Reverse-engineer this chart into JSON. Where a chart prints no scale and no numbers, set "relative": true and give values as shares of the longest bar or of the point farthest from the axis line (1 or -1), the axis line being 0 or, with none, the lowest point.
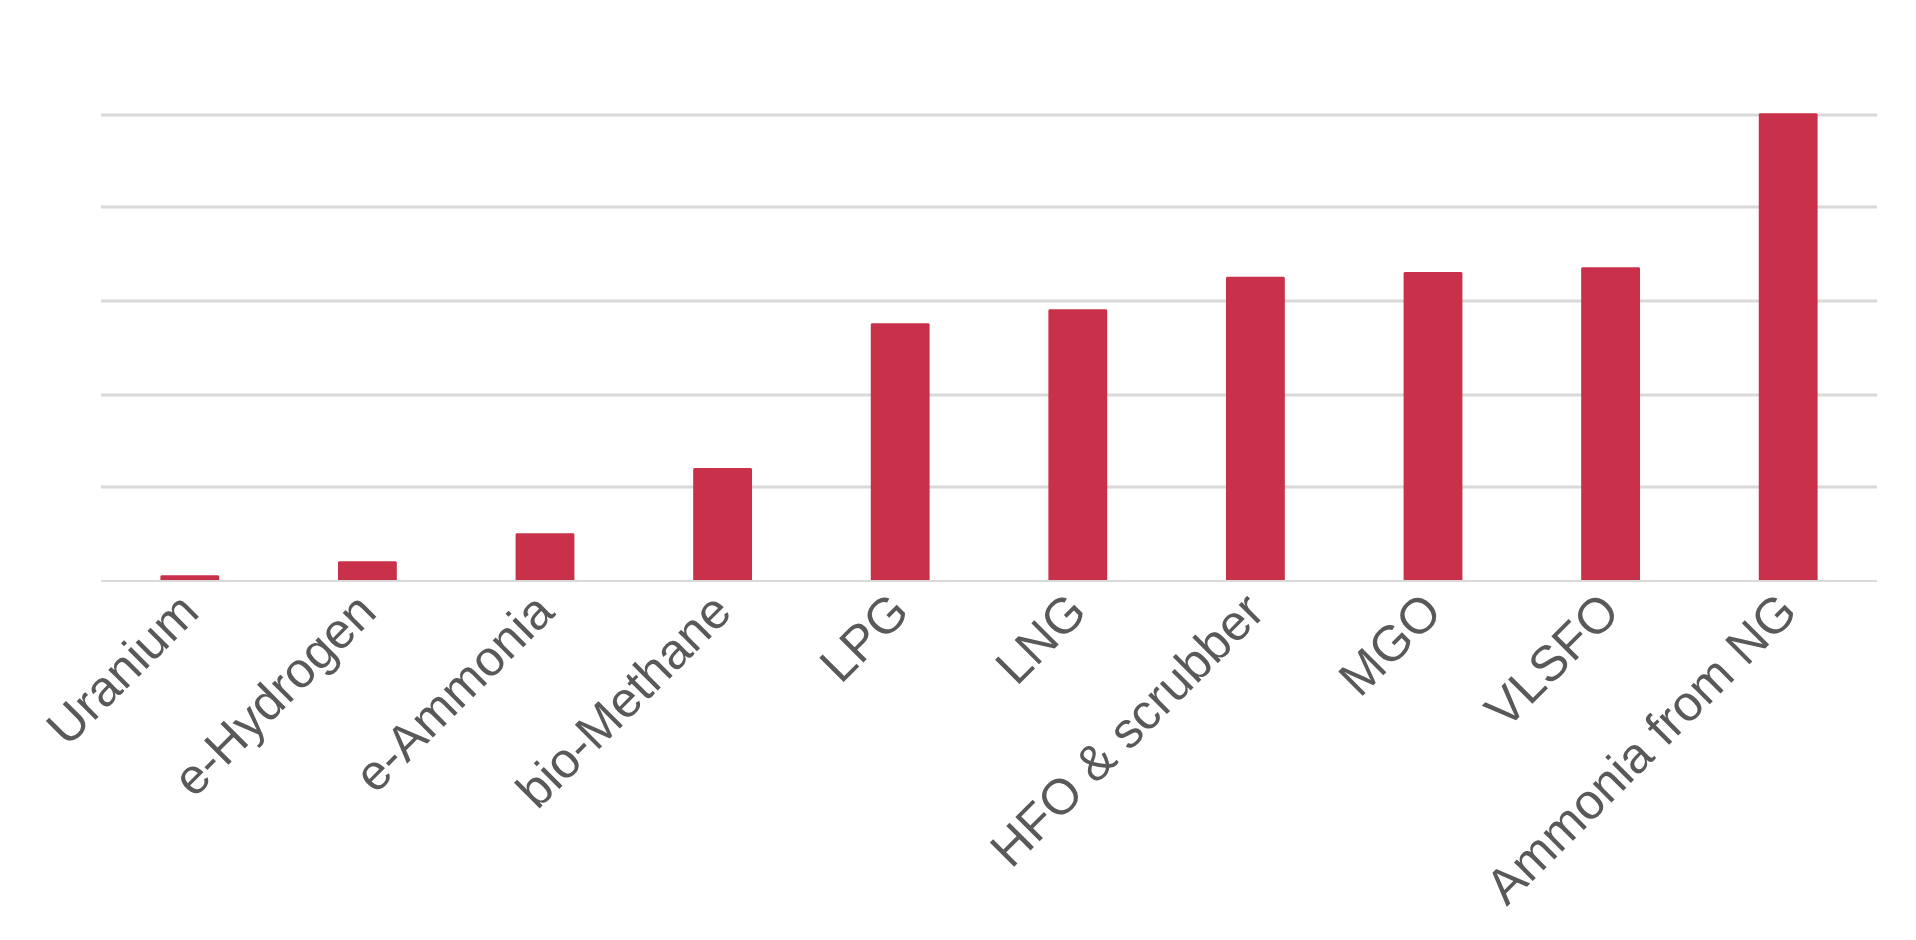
{
  "chart_data": {
    "type": "bar",
    "relative": true,
    "grid": "y",
    "categories": [
      "Uranium",
      "e-Hydrogen",
      "e-Ammonia",
      "bio-Methane",
      "LPG",
      "LNG",
      "HFO & scrubber",
      "MGO",
      "VLSFO",
      "Ammonia from NG"
    ],
    "values": [
      0.01,
      0.04,
      0.1,
      0.24,
      0.55,
      0.58,
      0.65,
      0.66,
      0.67,
      1
    ],
    "color": "#c9314a"
  }
}
